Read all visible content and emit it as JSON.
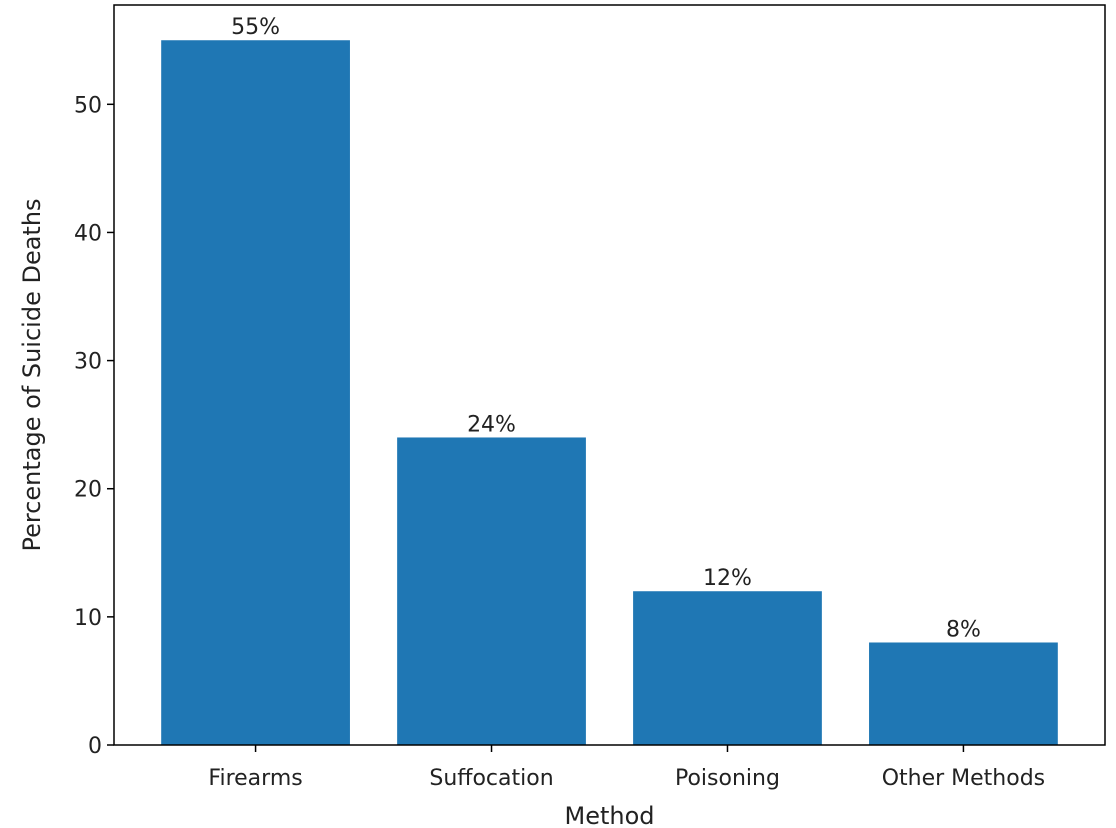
{
  "chart_data": {
    "type": "bar",
    "categories": [
      "Firearms",
      "Suffocation",
      "Poisoning",
      "Other Methods"
    ],
    "values": [
      55,
      24,
      12,
      8
    ],
    "bar_labels": [
      "55%",
      "24%",
      "12%",
      "8%"
    ],
    "title": "",
    "xlabel": "Method",
    "ylabel": "Percentage of Suicide Deaths",
    "ylim": [
      0,
      57.75
    ],
    "yticks": [
      0,
      10,
      20,
      30,
      40,
      50
    ],
    "ytick_labels": [
      "0",
      "10",
      "20",
      "30",
      "40",
      "50"
    ],
    "grid": false,
    "legend": "none",
    "bar_color": "#1f77b4"
  }
}
